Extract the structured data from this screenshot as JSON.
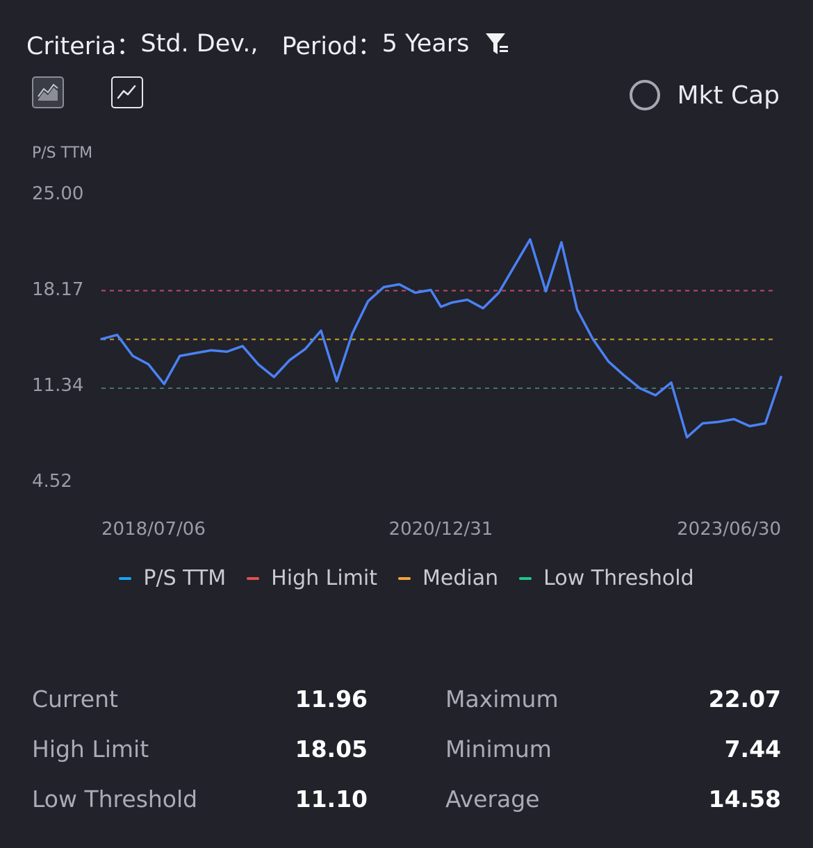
{
  "header": {
    "criteria_label": "Criteria：",
    "criteria_value": "Std. Dev.,",
    "period_label": "Period：",
    "period_value": "5 Years",
    "filter_icon": "filter-icon"
  },
  "toggles": {
    "area_icon": "area-chart-icon",
    "line_icon": "line-chart-icon",
    "mktcap_label": "Mkt Cap"
  },
  "colors": {
    "background": "#21222a",
    "ps_line": "#4b81f4",
    "high_limit": "#c04a6a",
    "median": "#c9a22a",
    "low_threshold": "#3e7a6c",
    "legend_ps": "#1aa3f2",
    "legend_high": "#e0504e",
    "legend_median": "#f2a23a",
    "legend_low": "#1ec58a"
  },
  "chart_data": {
    "type": "line",
    "ylabel": "P/S  TTM",
    "y_ticks": [
      "25.00",
      "18.17",
      "11.34",
      "4.52"
    ],
    "ylim": [
      4.52,
      25.0
    ],
    "x_ticks": [
      "2018/07/06",
      "2020/12/31",
      "2023/06/30"
    ],
    "x_range": [
      "2018/07/06",
      "2023/06/30"
    ],
    "series": [
      {
        "name": "P/S  TTM",
        "x": [
          "2018/07/06",
          "2018/08/17",
          "2018/09/28",
          "2018/11/09",
          "2018/12/21",
          "2019/02/01",
          "2019/03/15",
          "2019/04/26",
          "2019/06/07",
          "2019/07/19",
          "2019/08/30",
          "2019/10/11",
          "2019/11/22",
          "2020/01/03",
          "2020/02/14",
          "2020/03/27",
          "2020/05/08",
          "2020/06/19",
          "2020/07/31",
          "2020/09/11",
          "2020/10/23",
          "2020/12/04",
          "2020/12/31",
          "2021/01/29",
          "2021/03/12",
          "2021/04/23",
          "2021/06/04",
          "2021/07/16",
          "2021/08/27",
          "2021/10/08",
          "2021/11/19",
          "2021/12/31",
          "2022/02/11",
          "2022/03/25",
          "2022/05/06",
          "2022/06/17",
          "2022/07/29",
          "2022/09/09",
          "2022/10/21",
          "2022/12/02",
          "2023/01/13",
          "2023/02/24",
          "2023/04/07",
          "2023/05/19",
          "2023/06/30"
        ],
        "values": [
          14.6,
          14.9,
          13.4,
          12.8,
          11.4,
          13.4,
          13.6,
          13.8,
          13.7,
          14.1,
          12.8,
          11.9,
          13.1,
          13.9,
          15.2,
          11.6,
          15.0,
          17.3,
          18.3,
          18.5,
          17.9,
          18.1,
          16.9,
          17.2,
          17.4,
          16.8,
          17.9,
          19.8,
          21.7,
          18.0,
          21.5,
          16.7,
          14.6,
          13.0,
          12.0,
          11.1,
          10.6,
          11.5,
          7.6,
          8.6,
          8.7,
          8.9,
          8.4,
          8.6,
          11.9
        ]
      }
    ],
    "reference_lines": [
      {
        "name": "High Limit",
        "value": 18.05
      },
      {
        "name": "Median",
        "value": 14.58
      },
      {
        "name": "Low Threshold",
        "value": 11.1
      }
    ],
    "legend": [
      "P/S  TTM",
      "High Limit",
      "Median",
      "Low Threshold"
    ],
    "legend_position": "bottom-center",
    "grid": false
  },
  "stats": {
    "current_label": "Current",
    "current_value": "11.96",
    "maximum_label": "Maximum",
    "maximum_value": "22.07",
    "high_limit_label": "High Limit",
    "high_limit_value": "18.05",
    "minimum_label": "Minimum",
    "minimum_value": "7.44",
    "low_threshold_label": "Low Threshold",
    "low_threshold_value": "11.10",
    "average_label": "Average",
    "average_value": "14.58"
  }
}
